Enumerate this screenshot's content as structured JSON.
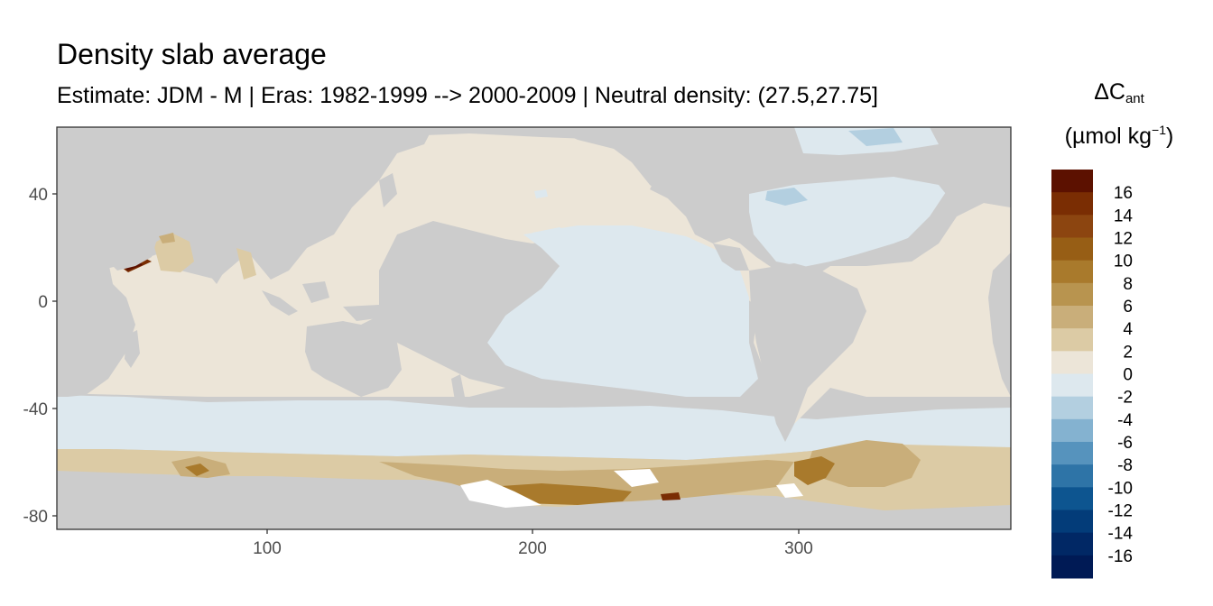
{
  "title": "Density slab average",
  "subtitle": "Estimate: JDM - M | Eras: 1982-1999 --> 2000-2009 | Neutral density: (27.5,27.75]",
  "legend": {
    "title_line1_main": "ΔC",
    "title_line1_sub": "ant",
    "title_line2_main": "(µmol kg",
    "title_line2_sup": "−1",
    "title_line2_end": ")",
    "labels": [
      "16",
      "14",
      "12",
      "10",
      "8",
      "6",
      "4",
      "2",
      "0",
      "-2",
      "-4",
      "-6",
      "-8",
      "-10",
      "-12",
      "-14",
      "-16"
    ],
    "colors": [
      "#5c1100",
      "#7a2d03",
      "#8c4510",
      "#975e15",
      "#a97a2c",
      "#b8944f",
      "#c9ae7a",
      "#dccba5",
      "#ece5d8",
      "#dde8ee",
      "#b3cfe0",
      "#84b2d0",
      "#5693bd",
      "#2e74a7",
      "#0d5590",
      "#033c79",
      "#012865",
      "#001a55"
    ]
  },
  "axes": {
    "x_ticks": [
      "100",
      "200",
      "300"
    ],
    "y_ticks": [
      "40",
      "0",
      "-40",
      "-80"
    ]
  },
  "chart_data": {
    "type": "heatmap",
    "title": "Density slab average",
    "xlim": [
      20,
      380
    ],
    "ylim": [
      -85,
      65
    ],
    "x_ticks": [
      100,
      200,
      300
    ],
    "y_ticks": [
      40,
      0,
      -40,
      -80
    ],
    "legend_title": "ΔCant (µmol kg−1)",
    "legend_range": [
      -16,
      16
    ],
    "land_color": "#cccccc",
    "colors": {
      "land": "#cccccc",
      "ocean_pos": "#ece5d8",
      "ocean_neg": "#dde8ee",
      "mid_pos": "#dccba5",
      "mid_pos2": "#c9ae7a",
      "strong_pos": "#a97a2c",
      "very_strong_pos": "#7a2d03",
      "max_pos": "#5c1100",
      "mild_neg": "#b3cfe0"
    }
  }
}
